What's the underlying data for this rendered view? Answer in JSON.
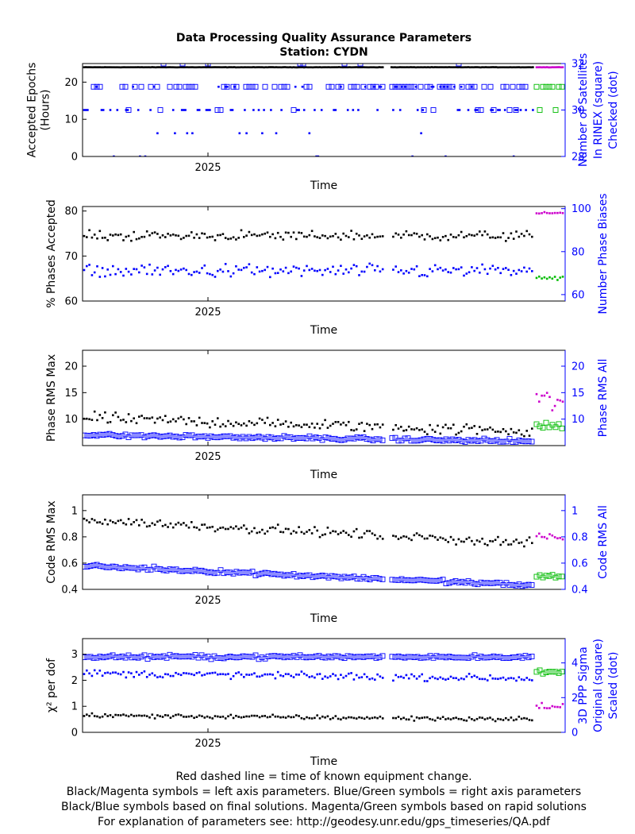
{
  "header": {
    "title": "Data Processing Quality Assurance Parameters",
    "station": "Station: CYDN"
  },
  "colors": {
    "final_left": "#000000",
    "final_right": "#0000ff",
    "rapid_left": "#cc00cc",
    "rapid_right": "#00bb00",
    "right_axis_label": "#0000ff"
  },
  "chart_data": [
    {
      "id": "epochs",
      "type": "scatter",
      "xlabel": "Time",
      "x_tick_labels": [
        "2025"
      ],
      "ylabel_left": [
        "Accepted Epochs",
        "(Hours)"
      ],
      "ylim_left": [
        0,
        25
      ],
      "yticks_left": [
        0,
        10,
        20
      ],
      "ylabel_right": [
        "Number of Satellites",
        "In RINEX (square)",
        "Checked (dot)"
      ],
      "ylim_right": [
        28,
        32
      ],
      "yticks_right": [
        28,
        30,
        32
      ],
      "series": [
        {
          "axis": "left",
          "marker": "dot",
          "source": "final",
          "level": 24,
          "noise": 0.05
        },
        {
          "axis": "right",
          "marker": "square",
          "source": "final",
          "levels": [
            31,
            30,
            32
          ],
          "noise": 0
        },
        {
          "axis": "right",
          "marker": "dot",
          "source": "final",
          "levels": [
            30,
            31,
            29,
            28
          ],
          "noise": 0
        },
        {
          "axis": "left",
          "marker": "dot",
          "source": "rapid",
          "level": 24,
          "noise": 0.05
        },
        {
          "axis": "right",
          "marker": "square",
          "source": "rapid",
          "levels": [
            31,
            30
          ],
          "noise": 0
        }
      ]
    },
    {
      "id": "phases",
      "type": "scatter",
      "xlabel": "Time",
      "x_tick_labels": [
        "2025"
      ],
      "ylabel_left": [
        "% Phases Accepted"
      ],
      "ylim_left": [
        60,
        81
      ],
      "yticks_left": [
        60,
        70,
        80
      ],
      "ylabel_right": [
        "Number Phase Biases"
      ],
      "ylim_right": [
        57,
        101
      ],
      "yticks_right": [
        60,
        80,
        100
      ],
      "series": [
        {
          "axis": "left",
          "marker": "dot",
          "source": "final",
          "mean": 74.5,
          "spread": 1.6
        },
        {
          "axis": "right",
          "marker": "dot",
          "source": "final",
          "mean": 71,
          "spread": 4.5
        },
        {
          "axis": "left",
          "marker": "dot",
          "source": "rapid",
          "mean": 79.5,
          "spread": 0.4
        },
        {
          "axis": "right",
          "marker": "dot",
          "source": "rapid",
          "mean": 68,
          "spread": 2.5
        }
      ]
    },
    {
      "id": "phase_rms",
      "type": "scatter",
      "xlabel": "Time",
      "x_tick_labels": [
        "2025"
      ],
      "ylabel_left": [
        "Phase RMS Max"
      ],
      "ylim_left": [
        5,
        23
      ],
      "yticks_left": [
        10,
        15,
        20
      ],
      "ylabel_right": [
        "Phase RMS All"
      ],
      "ylim_right": [
        5,
        23
      ],
      "yticks_right": [
        10,
        15,
        20
      ],
      "series": [
        {
          "axis": "left",
          "marker": "dot",
          "source": "final",
          "mean": 10.2,
          "spread": 1.6,
          "trend": -2.5
        },
        {
          "axis": "right",
          "marker": "square",
          "source": "final",
          "mean": 7.0,
          "spread": 0.5,
          "trend": -1.2
        },
        {
          "axis": "left",
          "marker": "dot",
          "source": "rapid",
          "mean": 13.5,
          "spread": 3.0
        },
        {
          "axis": "right",
          "marker": "square",
          "source": "rapid",
          "mean": 8.5,
          "spread": 1.5
        }
      ]
    },
    {
      "id": "code_rms",
      "type": "scatter",
      "xlabel": "Time",
      "x_tick_labels": [
        "2025"
      ],
      "ylabel_left": [
        "Code RMS Max"
      ],
      "ylim_left": [
        0.4,
        1.12
      ],
      "yticks_left": [
        0.4,
        0.6,
        0.8,
        1
      ],
      "ylabel_right": [
        "Code RMS All"
      ],
      "ylim_right": [
        0.4,
        1.12
      ],
      "yticks_right": [
        0.4,
        0.6,
        0.8,
        1
      ],
      "series": [
        {
          "axis": "left",
          "marker": "dot",
          "source": "final",
          "mean": 0.93,
          "spread": 0.05,
          "trend": -0.18
        },
        {
          "axis": "right",
          "marker": "square",
          "source": "final",
          "mean": 0.58,
          "spread": 0.02,
          "trend": -0.15
        },
        {
          "axis": "left",
          "marker": "dot",
          "source": "rapid",
          "mean": 0.8,
          "spread": 0.05
        },
        {
          "axis": "right",
          "marker": "square",
          "source": "rapid",
          "mean": 0.5,
          "spread": 0.03
        }
      ]
    },
    {
      "id": "chi2",
      "type": "scatter",
      "xlabel": "Time",
      "x_tick_labels": [
        "2025"
      ],
      "ylabel_left": [
        "χ² per dof"
      ],
      "ylim_left": [
        0,
        3.6
      ],
      "yticks_left": [
        0,
        1,
        2,
        3
      ],
      "ylabel_right": [
        "3D PPP Sigma",
        "Original (square)",
        "Scaled (dot)"
      ],
      "ylim_right": [
        0,
        5.4
      ],
      "yticks_right": [
        0,
        2,
        4
      ],
      "series": [
        {
          "axis": "left",
          "marker": "dot",
          "source": "final",
          "mean": 0.65,
          "spread": 0.12,
          "trend": -0.15
        },
        {
          "axis": "right",
          "marker": "square",
          "source": "final",
          "mean": 4.35,
          "spread": 0.15
        },
        {
          "axis": "right",
          "marker": "dot",
          "source": "final",
          "mean": 3.4,
          "spread": 0.3,
          "trend": -0.3
        },
        {
          "axis": "left",
          "marker": "dot",
          "source": "rapid",
          "mean": 1.0,
          "spread": 0.25
        },
        {
          "axis": "right",
          "marker": "square",
          "source": "rapid",
          "mean": 3.45,
          "spread": 0.15
        }
      ]
    }
  ],
  "footer": [
    "Red dashed line = time of known equipment change.",
    "Black/Magenta symbols = left axis parameters. Blue/Green symbols = right axis parameters",
    "Black/Blue symbols based on final solutions.  Magenta/Green symbols based on rapid solutions",
    "For explanation of parameters see: http://geodesy.unr.edu/gps_timeseries/QA.pdf"
  ]
}
